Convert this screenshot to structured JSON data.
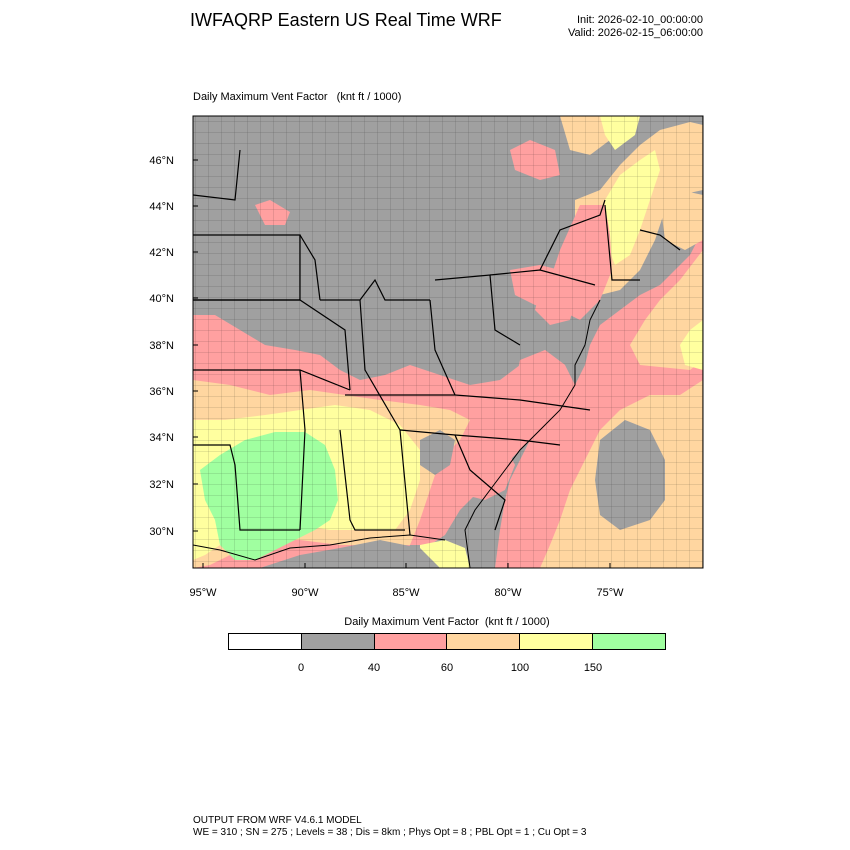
{
  "header": {
    "title": "IWFAQRP Eastern US Real Time WRF",
    "init": "Init: 2026-02-10_00:00:00",
    "valid": "Valid: 2026-02-15_06:00:00"
  },
  "panel": {
    "title": "Daily Maximum Vent Factor   (knt ft / 1000)"
  },
  "axes": {
    "lat_labels": [
      "46°N",
      "44°N",
      "42°N",
      "40°N",
      "38°N",
      "36°N",
      "34°N",
      "32°N",
      "30°N"
    ],
    "lon_labels": [
      "95°W",
      "90°W",
      "85°W",
      "80°W",
      "75°W"
    ]
  },
  "colorbar": {
    "title": "Daily Maximum Vent Factor  (knt ft / 1000)",
    "colors": [
      "#ffffff",
      "#a0a0a0",
      "#ffa0a0",
      "#ffd6a0",
      "#ffff9f",
      "#a0ffa0"
    ],
    "tick_labels": [
      "0",
      "40",
      "60",
      "100",
      "150"
    ]
  },
  "map": {
    "background_land": "#a0a0a0",
    "water": "#a0a0a0",
    "colors": {
      "low": "#a0a0a0",
      "pink": "#ffa0a0",
      "orange": "#ffd6a0",
      "yellow": "#ffff9f",
      "green": "#a0ffa0"
    }
  },
  "footer": {
    "line1": "OUTPUT FROM WRF V4.6.1 MODEL",
    "line2": "WE = 310 ; SN = 275 ; Levels = 38 ; Dis = 8km ; Phys Opt = 8 ; PBL Opt = 1 ; Cu Opt = 3"
  }
}
